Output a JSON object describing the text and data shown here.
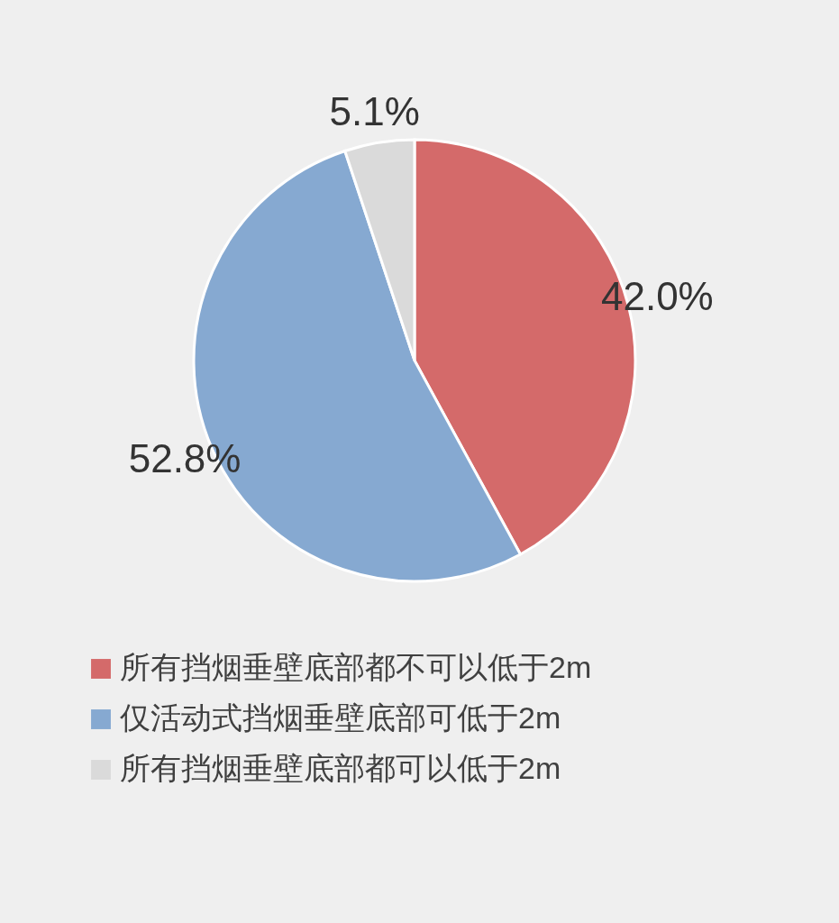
{
  "chart_data": {
    "type": "pie",
    "categories": [
      "所有挡烟垂壁底部都不可以低于2m",
      "仅活动式挡烟垂壁底部可低于2m",
      "所有挡烟垂壁底部都可以低于2m"
    ],
    "values": [
      42.0,
      52.8,
      5.1
    ],
    "colors": [
      "#d46a6a",
      "#86a9d1",
      "#dadada"
    ],
    "value_labels": [
      "42.0%",
      "52.8%",
      "5.1%"
    ],
    "legend": "bottom"
  }
}
